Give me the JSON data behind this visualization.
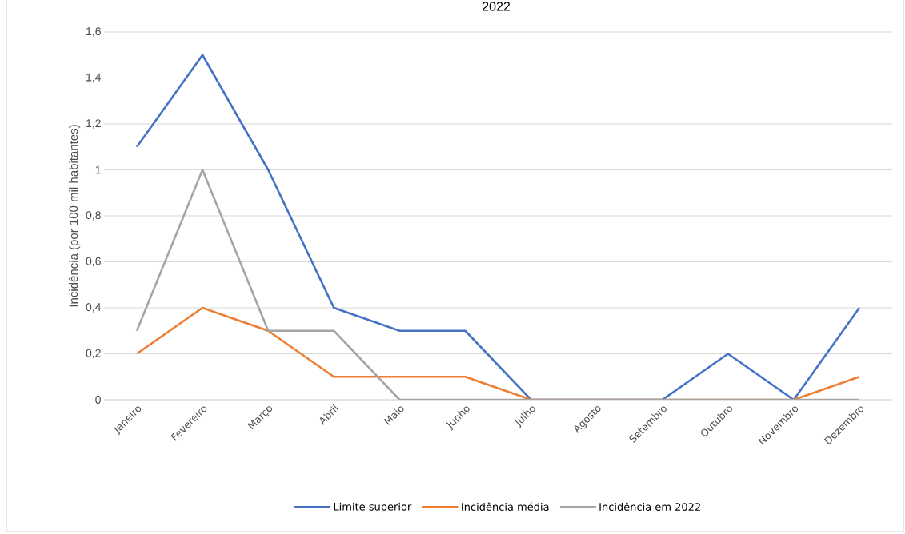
{
  "chart_data": {
    "type": "line",
    "title": "2022",
    "ylabel": "Incidência (por 100 mil habitantes)",
    "categories": [
      "Janeiro",
      "Fevereiro",
      "Março",
      "Abril",
      "Maio",
      "Junho",
      "Julho",
      "Agosto",
      "Setembro",
      "Outubro",
      "Novembro",
      "Dezembro"
    ],
    "series": [
      {
        "name": "Limite superior",
        "color": "#4472c4",
        "values": [
          1.1,
          1.5,
          1.0,
          0.4,
          0.3,
          0.3,
          0,
          0,
          0,
          0.2,
          0,
          0.4
        ]
      },
      {
        "name": "Incidência média",
        "color": "#ed7d31",
        "values": [
          0.2,
          0.4,
          0.3,
          0.1,
          0.1,
          0.1,
          0,
          0,
          0,
          0,
          0,
          0.1
        ]
      },
      {
        "name": "Incidência em 2022",
        "color": "#a5a5a5",
        "values": [
          0.3,
          1.0,
          0.3,
          0.3,
          0,
          0,
          0,
          0,
          0,
          0,
          0,
          0
        ]
      }
    ],
    "ylim": [
      0,
      1.6
    ],
    "yticks": [
      0,
      {
        "value": 0.2,
        "label": "0,2"
      },
      {
        "value": 0.4,
        "label": "0,4"
      },
      {
        "value": 0.6,
        "label": "0,6"
      },
      {
        "value": 0.8,
        "label": "0,8"
      },
      1,
      {
        "value": 1.2,
        "label": "1,2"
      },
      {
        "value": 1.4,
        "label": "1,4"
      },
      {
        "value": 1.6,
        "label": "1,6"
      }
    ],
    "grid": "y",
    "legend": "bottom",
    "marker": "none",
    "line_style": "solid"
  }
}
